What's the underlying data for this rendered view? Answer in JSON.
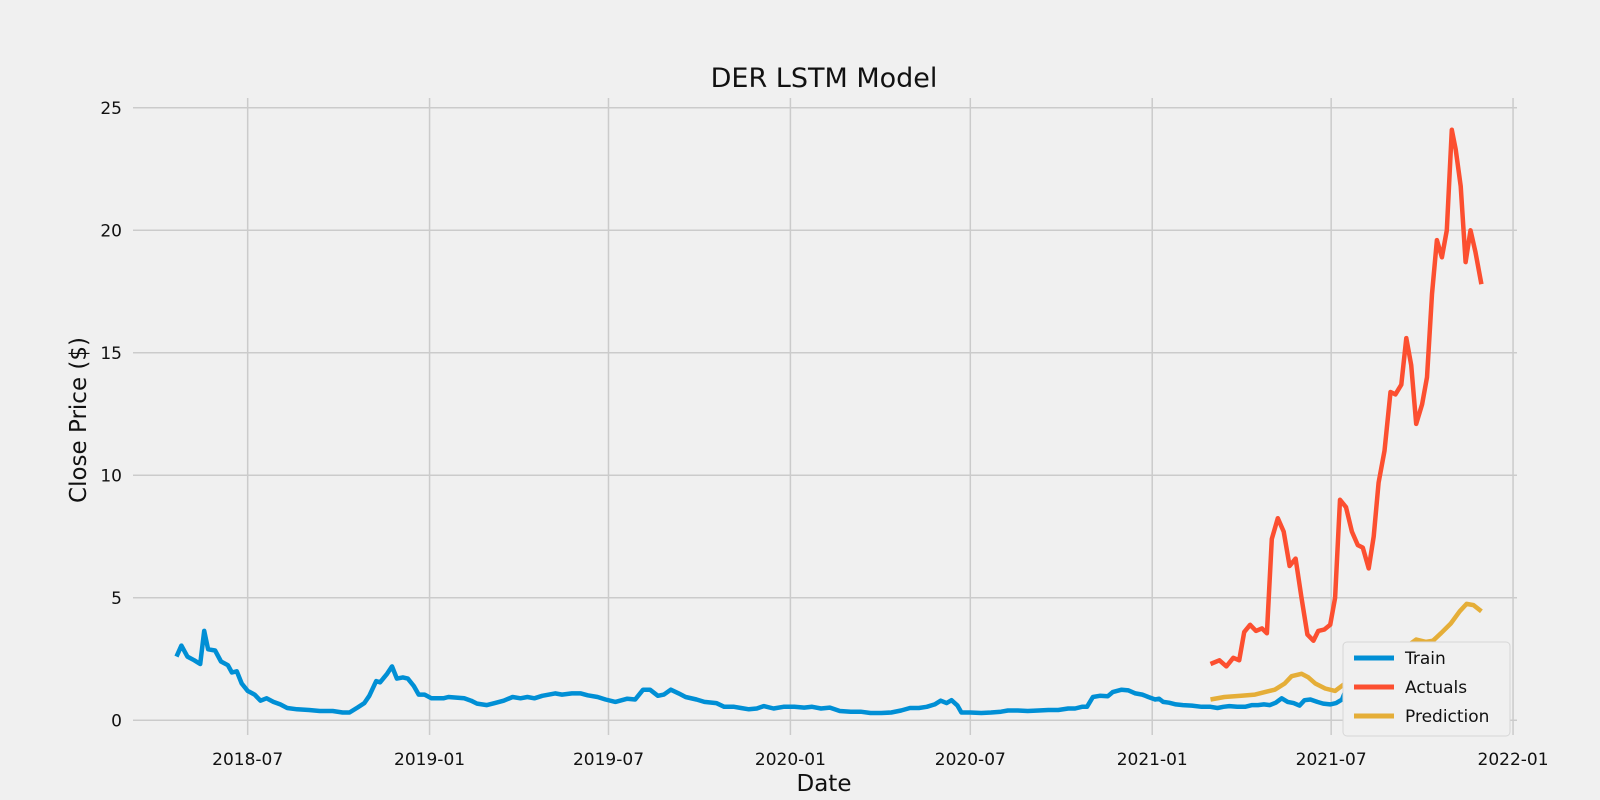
{
  "chart_data": {
    "type": "line",
    "title": "DER LSTM Model",
    "xlabel": "Date",
    "ylabel": "Close Price ($)",
    "x_axis_type": "date",
    "xlim": [
      "2018-03-07",
      "2022-01-05"
    ],
    "ylim": [
      -0.6,
      25.4
    ],
    "x_ticks": [
      "2018-07-01",
      "2019-01-01",
      "2019-07-01",
      "2020-01-01",
      "2020-07-01",
      "2021-01-01",
      "2021-07-01",
      "2022-01-01"
    ],
    "x_tick_labels": [
      "2018-07",
      "2019-01",
      "2019-07",
      "2020-01",
      "2020-07",
      "2021-01",
      "2021-07",
      "2022-01"
    ],
    "y_ticks": [
      0,
      5,
      10,
      15,
      20,
      25
    ],
    "y_tick_labels": [
      "0",
      "5",
      "10",
      "15",
      "20",
      "25"
    ],
    "grid": true,
    "legend_position": "lower-right",
    "series": [
      {
        "name": "Train",
        "color": "#008fd5",
        "points": [
          [
            "2018-04-20",
            2.6
          ],
          [
            "2018-04-25",
            3.05
          ],
          [
            "2018-05-01",
            2.6
          ],
          [
            "2018-05-08",
            2.45
          ],
          [
            "2018-05-14",
            2.3
          ],
          [
            "2018-05-18",
            3.65
          ],
          [
            "2018-05-22",
            2.9
          ],
          [
            "2018-05-29",
            2.85
          ],
          [
            "2018-06-04",
            2.4
          ],
          [
            "2018-06-11",
            2.25
          ],
          [
            "2018-06-15",
            1.95
          ],
          [
            "2018-06-20",
            2.0
          ],
          [
            "2018-06-25",
            1.5
          ],
          [
            "2018-07-01",
            1.2
          ],
          [
            "2018-07-08",
            1.05
          ],
          [
            "2018-07-14",
            0.8
          ],
          [
            "2018-07-20",
            0.9
          ],
          [
            "2018-07-27",
            0.75
          ],
          [
            "2018-08-03",
            0.65
          ],
          [
            "2018-08-10",
            0.5
          ],
          [
            "2018-08-20",
            0.45
          ],
          [
            "2018-09-01",
            0.42
          ],
          [
            "2018-09-12",
            0.38
          ],
          [
            "2018-09-25",
            0.38
          ],
          [
            "2018-10-05",
            0.32
          ],
          [
            "2018-10-12",
            0.32
          ],
          [
            "2018-10-20",
            0.52
          ],
          [
            "2018-10-27",
            0.7
          ],
          [
            "2018-11-01",
            1.0
          ],
          [
            "2018-11-08",
            1.6
          ],
          [
            "2018-11-12",
            1.55
          ],
          [
            "2018-11-19",
            1.9
          ],
          [
            "2018-11-24",
            2.2
          ],
          [
            "2018-11-29",
            1.7
          ],
          [
            "2018-12-05",
            1.75
          ],
          [
            "2018-12-10",
            1.7
          ],
          [
            "2018-12-16",
            1.4
          ],
          [
            "2018-12-21",
            1.05
          ],
          [
            "2018-12-27",
            1.05
          ],
          [
            "2019-01-03",
            0.9
          ],
          [
            "2019-01-15",
            0.9
          ],
          [
            "2019-01-20",
            0.95
          ],
          [
            "2019-02-05",
            0.9
          ],
          [
            "2019-02-12",
            0.8
          ],
          [
            "2019-02-18",
            0.68
          ],
          [
            "2019-02-28",
            0.62
          ],
          [
            "2019-03-08",
            0.7
          ],
          [
            "2019-03-17",
            0.8
          ],
          [
            "2019-03-26",
            0.95
          ],
          [
            "2019-04-03",
            0.9
          ],
          [
            "2019-04-10",
            0.95
          ],
          [
            "2019-04-17",
            0.9
          ],
          [
            "2019-04-25",
            1.0
          ],
          [
            "2019-05-08",
            1.1
          ],
          [
            "2019-05-15",
            1.05
          ],
          [
            "2019-05-25",
            1.1
          ],
          [
            "2019-06-03",
            1.1
          ],
          [
            "2019-06-10",
            1.02
          ],
          [
            "2019-06-20",
            0.95
          ],
          [
            "2019-06-28",
            0.85
          ],
          [
            "2019-07-08",
            0.75
          ],
          [
            "2019-07-20",
            0.88
          ],
          [
            "2019-07-28",
            0.85
          ],
          [
            "2019-08-05",
            1.25
          ],
          [
            "2019-08-12",
            1.25
          ],
          [
            "2019-08-20",
            1.0
          ],
          [
            "2019-08-26",
            1.05
          ],
          [
            "2019-09-02",
            1.25
          ],
          [
            "2019-09-10",
            1.1
          ],
          [
            "2019-09-17",
            0.95
          ],
          [
            "2019-09-28",
            0.85
          ],
          [
            "2019-10-06",
            0.75
          ],
          [
            "2019-10-18",
            0.7
          ],
          [
            "2019-10-26",
            0.55
          ],
          [
            "2019-11-05",
            0.55
          ],
          [
            "2019-11-12",
            0.5
          ],
          [
            "2019-11-20",
            0.45
          ],
          [
            "2019-11-28",
            0.48
          ],
          [
            "2019-12-05",
            0.58
          ],
          [
            "2019-12-15",
            0.48
          ],
          [
            "2019-12-25",
            0.55
          ],
          [
            "2020-01-05",
            0.55
          ],
          [
            "2020-01-15",
            0.52
          ],
          [
            "2020-01-23",
            0.55
          ],
          [
            "2020-02-01",
            0.48
          ],
          [
            "2020-02-10",
            0.52
          ],
          [
            "2020-02-20",
            0.38
          ],
          [
            "2020-03-02",
            0.35
          ],
          [
            "2020-03-12",
            0.35
          ],
          [
            "2020-03-22",
            0.3
          ],
          [
            "2020-04-02",
            0.3
          ],
          [
            "2020-04-12",
            0.32
          ],
          [
            "2020-04-22",
            0.4
          ],
          [
            "2020-05-01",
            0.5
          ],
          [
            "2020-05-10",
            0.5
          ],
          [
            "2020-05-18",
            0.55
          ],
          [
            "2020-05-26",
            0.65
          ],
          [
            "2020-06-01",
            0.8
          ],
          [
            "2020-06-07",
            0.7
          ],
          [
            "2020-06-12",
            0.82
          ],
          [
            "2020-06-18",
            0.6
          ],
          [
            "2020-06-22",
            0.32
          ],
          [
            "2020-07-01",
            0.32
          ],
          [
            "2020-07-12",
            0.3
          ],
          [
            "2020-07-22",
            0.32
          ],
          [
            "2020-08-01",
            0.35
          ],
          [
            "2020-08-08",
            0.4
          ],
          [
            "2020-08-18",
            0.4
          ],
          [
            "2020-08-28",
            0.38
          ],
          [
            "2020-09-08",
            0.4
          ],
          [
            "2020-09-18",
            0.42
          ],
          [
            "2020-09-28",
            0.42
          ],
          [
            "2020-10-08",
            0.48
          ],
          [
            "2020-10-15",
            0.48
          ],
          [
            "2020-10-22",
            0.55
          ],
          [
            "2020-10-27",
            0.55
          ],
          [
            "2020-11-02",
            0.95
          ],
          [
            "2020-11-09",
            1.0
          ],
          [
            "2020-11-17",
            0.98
          ],
          [
            "2020-11-22",
            1.15
          ],
          [
            "2020-12-01",
            1.25
          ],
          [
            "2020-12-08",
            1.22
          ],
          [
            "2020-12-15",
            1.1
          ],
          [
            "2020-12-22",
            1.05
          ],
          [
            "2020-12-28",
            0.95
          ],
          [
            "2021-01-04",
            0.85
          ],
          [
            "2021-01-08",
            0.88
          ],
          [
            "2021-01-12",
            0.75
          ],
          [
            "2021-01-18",
            0.72
          ],
          [
            "2021-01-25",
            0.65
          ],
          [
            "2021-02-01",
            0.62
          ],
          [
            "2021-02-10",
            0.6
          ],
          [
            "2021-02-20",
            0.55
          ],
          [
            "2021-03-01",
            0.55
          ],
          [
            "2021-03-08",
            0.5
          ],
          [
            "2021-03-14",
            0.55
          ],
          [
            "2021-03-20",
            0.58
          ],
          [
            "2021-03-28",
            0.55
          ],
          [
            "2021-04-05",
            0.55
          ],
          [
            "2021-04-12",
            0.62
          ],
          [
            "2021-04-18",
            0.62
          ],
          [
            "2021-04-24",
            0.65
          ],
          [
            "2021-04-30",
            0.62
          ],
          [
            "2021-05-06",
            0.72
          ],
          [
            "2021-05-12",
            0.9
          ],
          [
            "2021-05-18",
            0.75
          ],
          [
            "2021-05-24",
            0.7
          ],
          [
            "2021-05-30",
            0.6
          ],
          [
            "2021-06-04",
            0.82
          ],
          [
            "2021-06-10",
            0.85
          ],
          [
            "2021-06-17",
            0.75
          ],
          [
            "2021-06-23",
            0.68
          ],
          [
            "2021-06-30",
            0.65
          ],
          [
            "2021-07-06",
            0.7
          ],
          [
            "2021-07-12",
            0.85
          ],
          [
            "2021-07-17",
            1.35
          ],
          [
            "2021-07-22",
            1.4
          ],
          [
            "2021-07-28",
            2.25
          ]
        ]
      },
      {
        "name": "Actuals",
        "color": "#fc4f30",
        "points": [
          [
            "2021-03-01",
            2.3
          ],
          [
            "2021-03-10",
            2.45
          ],
          [
            "2021-03-17",
            2.2
          ],
          [
            "2021-03-24",
            2.55
          ],
          [
            "2021-03-30",
            2.45
          ],
          [
            "2021-04-04",
            3.6
          ],
          [
            "2021-04-10",
            3.9
          ],
          [
            "2021-04-16",
            3.65
          ],
          [
            "2021-04-22",
            3.75
          ],
          [
            "2021-04-27",
            3.55
          ],
          [
            "2021-05-02",
            7.4
          ],
          [
            "2021-05-08",
            8.25
          ],
          [
            "2021-05-14",
            7.7
          ],
          [
            "2021-05-20",
            6.3
          ],
          [
            "2021-05-26",
            6.6
          ],
          [
            "2021-06-01",
            5.0
          ],
          [
            "2021-06-07",
            3.5
          ],
          [
            "2021-06-13",
            3.25
          ],
          [
            "2021-06-18",
            3.65
          ],
          [
            "2021-06-24",
            3.7
          ],
          [
            "2021-06-30",
            3.9
          ],
          [
            "2021-07-05",
            5.0
          ],
          [
            "2021-07-10",
            9.0
          ],
          [
            "2021-07-16",
            8.7
          ],
          [
            "2021-07-22",
            7.7
          ],
          [
            "2021-07-28",
            7.15
          ],
          [
            "2021-08-02",
            7.05
          ],
          [
            "2021-08-08",
            6.2
          ],
          [
            "2021-08-13",
            7.5
          ],
          [
            "2021-08-18",
            9.7
          ],
          [
            "2021-08-24",
            11.0
          ],
          [
            "2021-08-30",
            13.4
          ],
          [
            "2021-09-04",
            13.3
          ],
          [
            "2021-09-10",
            13.7
          ],
          [
            "2021-09-15",
            15.6
          ],
          [
            "2021-09-20",
            14.5
          ],
          [
            "2021-09-25",
            12.1
          ],
          [
            "2021-10-01",
            12.9
          ],
          [
            "2021-10-06",
            14.0
          ],
          [
            "2021-10-11",
            17.4
          ],
          [
            "2021-10-16",
            19.6
          ],
          [
            "2021-10-21",
            18.9
          ],
          [
            "2021-10-26",
            20.0
          ],
          [
            "2021-10-31",
            24.1
          ],
          [
            "2021-11-04",
            23.3
          ],
          [
            "2021-11-09",
            21.8
          ],
          [
            "2021-11-14",
            18.7
          ],
          [
            "2021-11-19",
            20.0
          ],
          [
            "2021-11-24",
            19.1
          ],
          [
            "2021-11-30",
            17.8
          ]
        ]
      },
      {
        "name": "Prediction",
        "color": "#e5ae38",
        "points": [
          [
            "2021-03-01",
            0.85
          ],
          [
            "2021-03-15",
            0.95
          ],
          [
            "2021-04-01",
            1.0
          ],
          [
            "2021-04-15",
            1.05
          ],
          [
            "2021-04-25",
            1.15
          ],
          [
            "2021-05-05",
            1.25
          ],
          [
            "2021-05-15",
            1.5
          ],
          [
            "2021-05-22",
            1.8
          ],
          [
            "2021-06-01",
            1.9
          ],
          [
            "2021-06-08",
            1.75
          ],
          [
            "2021-06-15",
            1.5
          ],
          [
            "2021-06-25",
            1.3
          ],
          [
            "2021-07-05",
            1.2
          ],
          [
            "2021-07-15",
            1.5
          ],
          [
            "2021-07-25",
            1.95
          ],
          [
            "2021-08-05",
            2.1
          ],
          [
            "2021-08-15",
            2.0
          ],
          [
            "2021-08-25",
            2.2
          ],
          [
            "2021-09-05",
            2.6
          ],
          [
            "2021-09-15",
            3.0
          ],
          [
            "2021-09-25",
            3.3
          ],
          [
            "2021-10-05",
            3.2
          ],
          [
            "2021-10-12",
            3.25
          ],
          [
            "2021-10-20",
            3.55
          ],
          [
            "2021-10-30",
            3.95
          ],
          [
            "2021-11-08",
            4.45
          ],
          [
            "2021-11-15",
            4.75
          ],
          [
            "2021-11-22",
            4.7
          ],
          [
            "2021-11-30",
            4.45
          ]
        ]
      }
    ]
  }
}
